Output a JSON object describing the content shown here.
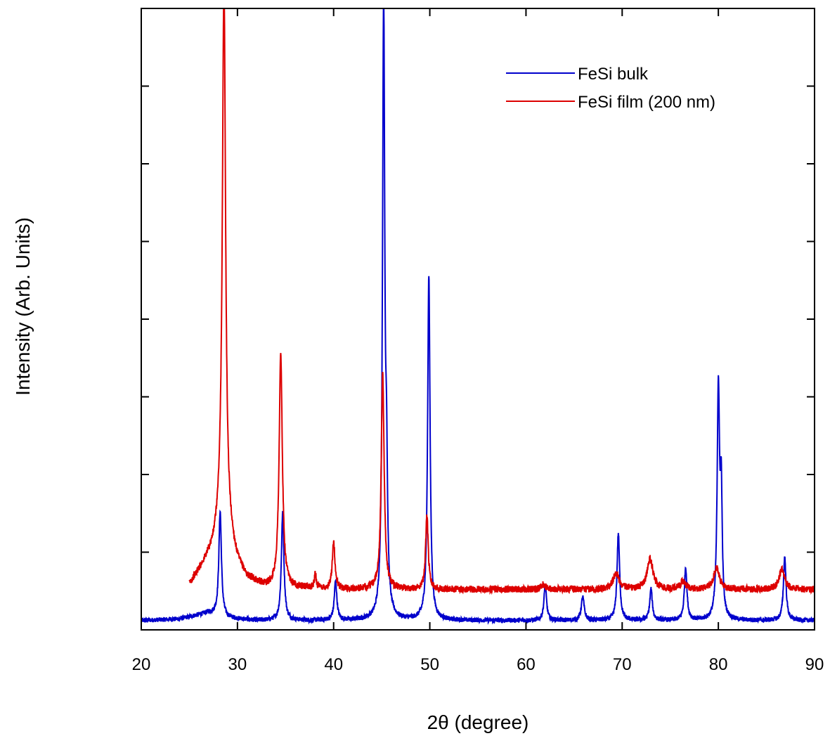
{
  "chart_data": {
    "type": "line",
    "title": "",
    "xlabel": "2θ (degree)",
    "ylabel": "Intensity (Arb. Units)",
    "xlim": [
      20,
      90
    ],
    "ylim": [
      0,
      8
    ],
    "x_ticks": [
      20,
      30,
      40,
      50,
      60,
      70,
      80,
      90
    ],
    "x_tick_labels": [
      "20",
      "30",
      "40",
      "50",
      "60",
      "70",
      "80",
      "90"
    ],
    "y_tick_values": [
      1,
      2,
      3,
      4,
      5,
      6,
      7
    ],
    "y_tick_labels_shown": false,
    "grid": false,
    "legend_position": "top-right",
    "series": [
      {
        "name": "FeSi bulk",
        "color": "#0000cc",
        "x_start": 20,
        "x_end": 90,
        "baseline": [
          [
            20,
            0.12
          ],
          [
            24,
            0.14
          ],
          [
            27,
            0.22
          ],
          [
            29,
            0.15
          ],
          [
            32,
            0.12
          ],
          [
            90,
            0.12
          ]
        ],
        "noise": 0.03,
        "peaks": [
          {
            "x": 28.2,
            "height": 1.35,
            "width": 0.16
          },
          {
            "x": 34.7,
            "height": 1.38,
            "width": 0.16
          },
          {
            "x": 40.2,
            "height": 0.5,
            "width": 0.16
          },
          {
            "x": 45.2,
            "height": 7.95,
            "width": 0.14
          },
          {
            "x": 45.5,
            "height": 1.5,
            "width": 0.12
          },
          {
            "x": 49.9,
            "height": 4.45,
            "width": 0.15
          },
          {
            "x": 62.0,
            "height": 0.45,
            "width": 0.16
          },
          {
            "x": 65.9,
            "height": 0.3,
            "width": 0.18
          },
          {
            "x": 69.6,
            "height": 1.12,
            "width": 0.16
          },
          {
            "x": 73.0,
            "height": 0.4,
            "width": 0.16
          },
          {
            "x": 76.6,
            "height": 0.68,
            "width": 0.16
          },
          {
            "x": 80.0,
            "height": 2.95,
            "width": 0.15
          },
          {
            "x": 80.3,
            "height": 1.5,
            "width": 0.12
          },
          {
            "x": 86.9,
            "height": 0.82,
            "width": 0.16
          }
        ]
      },
      {
        "name": "FeSi film (200 nm)",
        "color": "#dd0000",
        "x_start": 25,
        "x_end": 90,
        "baseline": [
          [
            25,
            0.58
          ],
          [
            26.5,
            0.85
          ],
          [
            27.5,
            1.05
          ],
          [
            28.3,
            1.35
          ],
          [
            29.3,
            1.1
          ],
          [
            30,
            0.85
          ],
          [
            31,
            0.66
          ],
          [
            33,
            0.55
          ],
          [
            40,
            0.52
          ],
          [
            90,
            0.52
          ]
        ],
        "noise": 0.045,
        "peaks": [
          {
            "x": 28.6,
            "height": 7.05,
            "width": 0.2
          },
          {
            "x": 34.5,
            "height": 3.0,
            "width": 0.2
          },
          {
            "x": 38.1,
            "height": 0.18,
            "width": 0.12
          },
          {
            "x": 40.0,
            "height": 0.62,
            "width": 0.16
          },
          {
            "x": 45.1,
            "height": 2.78,
            "width": 0.18
          },
          {
            "x": 49.7,
            "height": 0.95,
            "width": 0.16
          },
          {
            "x": 61.8,
            "height": 0.06,
            "width": 0.3
          },
          {
            "x": 69.4,
            "height": 0.2,
            "width": 0.4
          },
          {
            "x": 72.9,
            "height": 0.4,
            "width": 0.35
          },
          {
            "x": 76.3,
            "height": 0.1,
            "width": 0.3
          },
          {
            "x": 79.8,
            "height": 0.28,
            "width": 0.35
          },
          {
            "x": 86.6,
            "height": 0.25,
            "width": 0.35
          }
        ]
      }
    ]
  }
}
